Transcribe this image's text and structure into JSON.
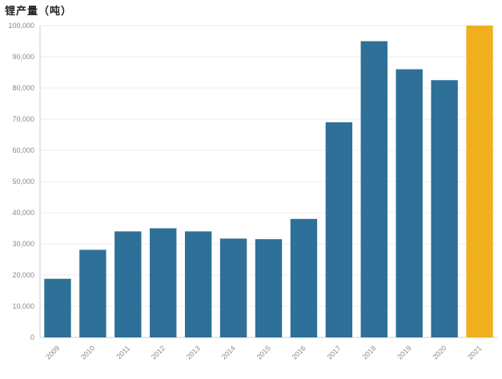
{
  "title": "锂产量（吨）",
  "colors": {
    "bar": "#2e7098",
    "highlight": "#f0b01e",
    "grid": "#ececec",
    "axis": "#cccccc",
    "tick_text": "#8a8a8a"
  },
  "chart_data": {
    "type": "bar",
    "title": "锂产量（吨）",
    "xlabel": "",
    "ylabel": "",
    "categories": [
      "2009",
      "2010",
      "2011",
      "2012",
      "2013",
      "2014",
      "2015",
      "2016",
      "2017",
      "2018",
      "2019",
      "2020",
      "2021"
    ],
    "values": [
      18800,
      28100,
      34000,
      35000,
      34000,
      31700,
      31500,
      38000,
      69000,
      95000,
      86000,
      82500,
      100000
    ],
    "highlight_category": "2021",
    "ylim": [
      0,
      100000
    ],
    "yticks": [
      0,
      10000,
      20000,
      30000,
      40000,
      50000,
      60000,
      70000,
      80000,
      90000,
      100000
    ],
    "ytick_labels": [
      "0",
      "10,000",
      "20,000",
      "30,000",
      "40,000",
      "50,000",
      "60,000",
      "70,000",
      "80,000",
      "90,000",
      "100,000"
    ],
    "grid": true,
    "legend": "none"
  }
}
